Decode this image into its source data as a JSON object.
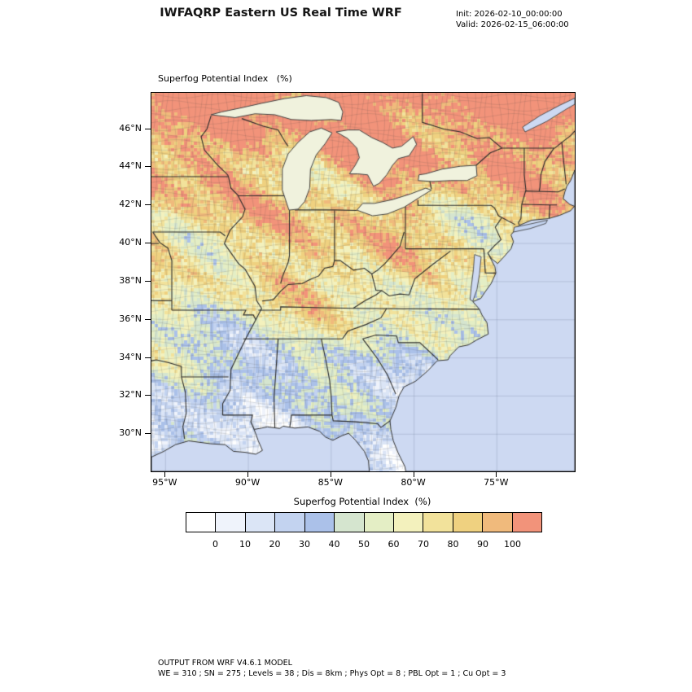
{
  "header": {
    "title": "IWFAQRP Eastern US Real Time WRF",
    "init_label": "Init: 2026-02-10_00:00:00",
    "valid_label": "Valid: 2026-02-15_06:00:00"
  },
  "map": {
    "field_label": "Superfog Potential Index   (%)",
    "y_ticks": [
      "46°N",
      "44°N",
      "42°N",
      "40°N",
      "38°N",
      "36°N",
      "34°N",
      "32°N",
      "30°N"
    ],
    "y_tick_lats": [
      46,
      44,
      42,
      40,
      38,
      36,
      34,
      32,
      30
    ],
    "x_ticks": [
      "95°W",
      "90°W",
      "85°W",
      "80°W",
      "75°W"
    ],
    "x_tick_lons": [
      -95,
      -90,
      -85,
      -80,
      -75
    ],
    "lon_range": [
      -95.85,
      -70.3
    ],
    "lat_range": [
      28.05,
      47.9
    ]
  },
  "colorbar": {
    "title": "Superfog Potential Index  (%)",
    "tick_labels": [
      "0",
      "10",
      "20",
      "30",
      "40",
      "50",
      "60",
      "70",
      "80",
      "90",
      "100"
    ],
    "levels": [
      0,
      10,
      20,
      30,
      40,
      50,
      60,
      70,
      80,
      90,
      100
    ],
    "colors": [
      "#ffffff",
      "#eff3fb",
      "#dbe5f6",
      "#c3d3f0",
      "#abc1e9",
      "#d5e5cf",
      "#e4eec5",
      "#f3f1bd",
      "#f2e29b",
      "#efd180",
      "#f0ba7c",
      "#f2937a"
    ]
  },
  "colors": {
    "ocean": "#cdd9f2",
    "lake": "#f0f2dd"
  },
  "footer": {
    "line1": "OUTPUT FROM WRF V4.6.1 MODEL",
    "line2": "WE = 310 ; SN = 275 ; Levels = 38 ; Dis = 8km ; Phys Opt = 8 ; PBL Opt = 1 ; Cu Opt = 3"
  }
}
